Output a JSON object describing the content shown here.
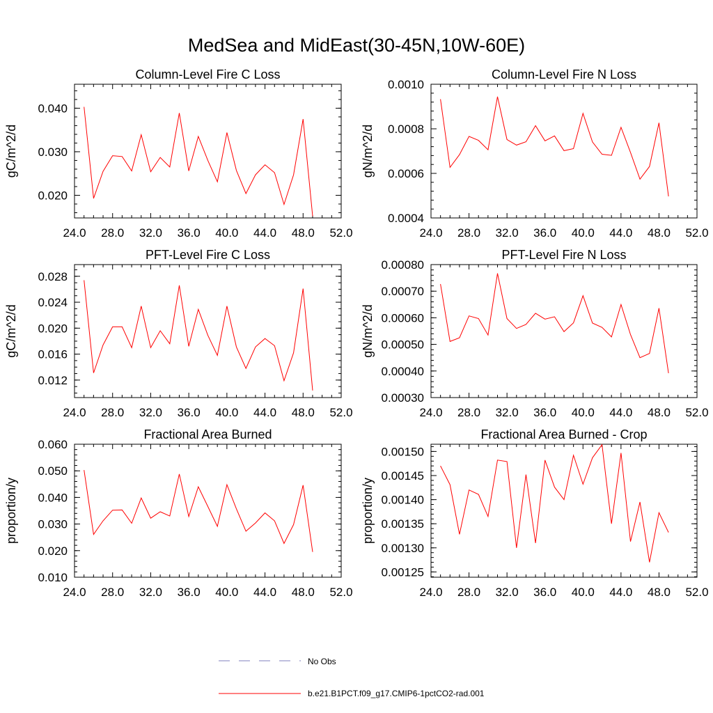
{
  "title": "MedSea and MidEast(30-45N,10W-60E)",
  "colors": {
    "model": "#ff0000",
    "obs": "#7f7fbf",
    "axis": "#000000"
  },
  "legend": [
    {
      "label": "No Obs",
      "style": "dashed",
      "color": "#7f7fbf"
    },
    {
      "label": "b.e21.B1PCT.f09_g17.CMIP6-1pctCO2-rad.001",
      "style": "solid",
      "color": "#ff0000"
    }
  ],
  "chart_data": [
    {
      "type": "line",
      "title": "Column-Level Fire C Loss",
      "ylabel": "gC/m^2/d",
      "xlim": [
        24,
        52
      ],
      "xticks": [
        24,
        28,
        32,
        36,
        40,
        44,
        48,
        52
      ],
      "xtick_labels": [
        "24.0",
        "28.0",
        "32.0",
        "36.0",
        "40.0",
        "44.0",
        "48.0",
        "52.0"
      ],
      "ylim": [
        0.0148,
        0.0455
      ],
      "yticks": [
        0.02,
        0.03,
        0.04
      ],
      "ytick_labels": [
        "0.020",
        "0.030",
        "0.040"
      ],
      "yminor": 0.002,
      "x": [
        25,
        26,
        27,
        28,
        29,
        30,
        31,
        32,
        33,
        34,
        35,
        36,
        37,
        38,
        39,
        40,
        41,
        42,
        43,
        44,
        45,
        46,
        47,
        48,
        49
      ],
      "series": [
        {
          "name": "b.e21.B1PCT.f09_g17.CMIP6-1pctCO2-rad.001",
          "values": [
            0.0403,
            0.0193,
            0.0255,
            0.0291,
            0.0289,
            0.0256,
            0.0339,
            0.0254,
            0.0287,
            0.0265,
            0.0389,
            0.0256,
            0.0335,
            0.028,
            0.0231,
            0.0344,
            0.0257,
            0.0204,
            0.0247,
            0.027,
            0.0252,
            0.0179,
            0.0247,
            0.0375,
            0.0152
          ]
        }
      ]
    },
    {
      "type": "line",
      "title": "Column-Level Fire N Loss",
      "ylabel": "gN/m^2/d",
      "xlim": [
        24,
        52
      ],
      "xticks": [
        24,
        28,
        32,
        36,
        40,
        44,
        48,
        52
      ],
      "xtick_labels": [
        "24.0",
        "28.0",
        "32.0",
        "36.0",
        "40.0",
        "44.0",
        "48.0",
        "52.0"
      ],
      "ylim": [
        0.0004,
        0.001
      ],
      "yticks": [
        0.0004,
        0.0006,
        0.0008,
        0.001
      ],
      "ytick_labels": [
        "0.0004",
        "0.0006",
        "0.0008",
        "0.0010"
      ],
      "yminor": 4e-05,
      "x": [
        25,
        26,
        27,
        28,
        29,
        30,
        31,
        32,
        33,
        34,
        35,
        36,
        37,
        38,
        39,
        40,
        41,
        42,
        43,
        44,
        45,
        46,
        47,
        48,
        49
      ],
      "series": [
        {
          "name": "b.e21.B1PCT.f09_g17.CMIP6-1pctCO2-rad.001",
          "values": [
            0.000933,
            0.000627,
            0.000684,
            0.000766,
            0.000748,
            0.000706,
            0.000944,
            0.000752,
            0.000727,
            0.000742,
            0.000814,
            0.000746,
            0.000768,
            0.000702,
            0.000711,
            0.000869,
            0.000741,
            0.000686,
            0.000681,
            0.000807,
            0.000694,
            0.000574,
            0.000631,
            0.000827,
            0.000497
          ]
        }
      ]
    },
    {
      "type": "line",
      "title": "PFT-Level Fire C Loss",
      "ylabel": "gC/m^2/d",
      "xlim": [
        24,
        52
      ],
      "xticks": [
        24,
        28,
        32,
        36,
        40,
        44,
        48,
        52
      ],
      "xtick_labels": [
        "24.0",
        "28.0",
        "32.0",
        "36.0",
        "40.0",
        "44.0",
        "48.0",
        "52.0"
      ],
      "ylim": [
        0.0093,
        0.0298
      ],
      "yticks": [
        0.012,
        0.016,
        0.02,
        0.024,
        0.028
      ],
      "ytick_labels": [
        "0.012",
        "0.016",
        "0.020",
        "0.024",
        "0.028"
      ],
      "yminor": 0.001,
      "x": [
        25,
        26,
        27,
        28,
        29,
        30,
        31,
        32,
        33,
        34,
        35,
        36,
        37,
        38,
        39,
        40,
        41,
        42,
        43,
        44,
        45,
        46,
        47,
        48,
        49
      ],
      "series": [
        {
          "name": "b.e21.B1PCT.f09_g17.CMIP6-1pctCO2-rad.001",
          "values": [
            0.0274,
            0.0131,
            0.0174,
            0.0202,
            0.0202,
            0.017,
            0.0234,
            0.017,
            0.0196,
            0.0176,
            0.0266,
            0.0172,
            0.0229,
            0.0189,
            0.0158,
            0.0234,
            0.0171,
            0.0138,
            0.0171,
            0.0184,
            0.0173,
            0.0119,
            0.0162,
            0.0261,
            0.0104
          ]
        }
      ]
    },
    {
      "type": "line",
      "title": "PFT-Level Fire N Loss",
      "ylabel": "gN/m^2/d",
      "xlim": [
        24,
        52
      ],
      "xticks": [
        24,
        28,
        32,
        36,
        40,
        44,
        48,
        52
      ],
      "xtick_labels": [
        "24.0",
        "28.0",
        "32.0",
        "36.0",
        "40.0",
        "44.0",
        "48.0",
        "52.0"
      ],
      "ylim": [
        0.0003,
        0.0008
      ],
      "yticks": [
        0.0003,
        0.0004,
        0.0005,
        0.0006,
        0.0007,
        0.0008
      ],
      "ytick_labels": [
        "0.00030",
        "0.00040",
        "0.00050",
        "0.00060",
        "0.00070",
        "0.00080"
      ],
      "yminor": 2e-05,
      "x": [
        25,
        26,
        27,
        28,
        29,
        30,
        31,
        32,
        33,
        34,
        35,
        36,
        37,
        38,
        39,
        40,
        41,
        42,
        43,
        44,
        45,
        46,
        47,
        48,
        49
      ],
      "series": [
        {
          "name": "b.e21.B1PCT.f09_g17.CMIP6-1pctCO2-rad.001",
          "values": [
            0.000727,
            0.000511,
            0.000525,
            0.000607,
            0.000597,
            0.000535,
            0.000767,
            0.000597,
            0.00056,
            0.000575,
            0.000617,
            0.000595,
            0.000604,
            0.000548,
            0.000581,
            0.000683,
            0.00058,
            0.000564,
            0.000528,
            0.00065,
            0.000537,
            0.00045,
            0.000466,
            0.000636,
            0.000392
          ]
        }
      ]
    },
    {
      "type": "line",
      "title": "Fractional Area Burned",
      "ylabel": "proportion/y",
      "xlim": [
        24,
        52
      ],
      "xticks": [
        24,
        28,
        32,
        36,
        40,
        44,
        48,
        52
      ],
      "xtick_labels": [
        "24.0",
        "28.0",
        "32.0",
        "36.0",
        "40.0",
        "44.0",
        "48.0",
        "52.0"
      ],
      "ylim": [
        0.01,
        0.06
      ],
      "yticks": [
        0.01,
        0.02,
        0.03,
        0.04,
        0.05,
        0.06
      ],
      "ytick_labels": [
        "0.010",
        "0.020",
        "0.030",
        "0.040",
        "0.050",
        "0.060"
      ],
      "yminor": 0.002,
      "x": [
        25,
        26,
        27,
        28,
        29,
        30,
        31,
        32,
        33,
        34,
        35,
        36,
        37,
        38,
        39,
        40,
        41,
        42,
        43,
        44,
        45,
        46,
        47,
        48,
        49
      ],
      "series": [
        {
          "name": "b.e21.B1PCT.f09_g17.CMIP6-1pctCO2-rad.001",
          "values": [
            0.0503,
            0.0261,
            0.0312,
            0.0352,
            0.0353,
            0.0303,
            0.0398,
            0.0322,
            0.0346,
            0.033,
            0.0488,
            0.0328,
            0.044,
            0.0366,
            0.0291,
            0.0448,
            0.0357,
            0.0273,
            0.0304,
            0.0342,
            0.0312,
            0.0227,
            0.0298,
            0.0446,
            0.0195
          ]
        }
      ]
    },
    {
      "type": "line",
      "title": "Fractional Area Burned - Crop",
      "ylabel": "proportion/y",
      "xlim": [
        24,
        52
      ],
      "xticks": [
        24,
        28,
        32,
        36,
        40,
        44,
        48,
        52
      ],
      "xtick_labels": [
        "24.0",
        "28.0",
        "32.0",
        "36.0",
        "40.0",
        "44.0",
        "48.0",
        "52.0"
      ],
      "ylim": [
        0.001239,
        0.001515
      ],
      "yticks": [
        0.00125,
        0.0013,
        0.00135,
        0.0014,
        0.00145,
        0.0015
      ],
      "ytick_labels": [
        "0.00125",
        "0.00130",
        "0.00135",
        "0.00140",
        "0.00145",
        "0.00150"
      ],
      "yminor": 1e-05,
      "x": [
        25,
        26,
        27,
        28,
        29,
        30,
        31,
        32,
        33,
        34,
        35,
        36,
        37,
        38,
        39,
        40,
        41,
        42,
        43,
        44,
        45,
        46,
        47,
        48,
        49
      ],
      "series": [
        {
          "name": "b.e21.B1PCT.f09_g17.CMIP6-1pctCO2-rad.001",
          "values": [
            0.00147,
            0.001431,
            0.001328,
            0.00142,
            0.001411,
            0.001365,
            0.001482,
            0.001479,
            0.0013,
            0.001452,
            0.00131,
            0.001482,
            0.001426,
            0.0014,
            0.001492,
            0.001432,
            0.001487,
            0.001514,
            0.00135,
            0.001497,
            0.001313,
            0.001395,
            0.00127,
            0.001373,
            0.001332
          ]
        }
      ]
    }
  ]
}
